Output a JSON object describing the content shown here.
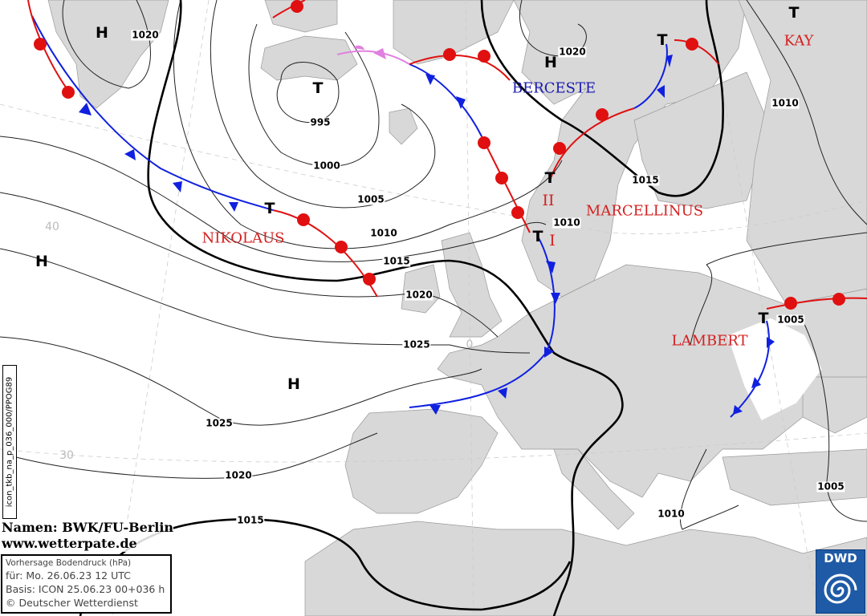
{
  "map": {
    "pressure_systems": [
      {
        "type": "H",
        "label": "H"
      },
      {
        "type": "T",
        "label": "T"
      },
      {
        "type": "H",
        "label": "H"
      },
      {
        "type": "H",
        "label": "H"
      },
      {
        "type": "H",
        "label": "H"
      },
      {
        "type": "T",
        "label": "T"
      },
      {
        "type": "T",
        "label": "T"
      },
      {
        "type": "T",
        "label": "T"
      },
      {
        "type": "T",
        "label": "T"
      },
      {
        "type": "T",
        "label": "T"
      },
      {
        "type": "T",
        "label": "T"
      }
    ],
    "isobar_labels": [
      "1020",
      "995",
      "1000",
      "1005",
      "1010",
      "1015",
      "1020",
      "1025",
      "1025",
      "1020",
      "1015",
      "1020",
      "1010",
      "1015",
      "1010",
      "1005",
      "1005",
      "1010"
    ],
    "system_names": {
      "nikolaus": "NIKOLAUS",
      "berceste": "BERCESTE",
      "kay": "KAY",
      "marcellinus": "MARCELLINUS",
      "lambert": "LAMBERT",
      "marcellinus_ii": "II",
      "marcellinus_i": "I"
    },
    "lat_labels": [
      "40",
      "30",
      "0"
    ],
    "colors": {
      "warm_front": "#e01010",
      "cold_front": "#1020e0",
      "occlusion": "#e080e0",
      "land": "#d8d8d8",
      "sea": "#ffffff"
    }
  },
  "credit": {
    "names": "Namen: BWK/FU-Berlin",
    "url": "www.wetterpate.de"
  },
  "info": {
    "title": "Vorhersage Bodendruck (hPa)",
    "valid": "für:  Mo. 26.06.23  12 UTC",
    "basis": "Basis: ICON  25.06.23 00+036 h",
    "copyright": "© Deutscher Wetterdienst"
  },
  "product_code": "icon_tkb_na_p_036_000/PPOG89",
  "logo": "DWD"
}
